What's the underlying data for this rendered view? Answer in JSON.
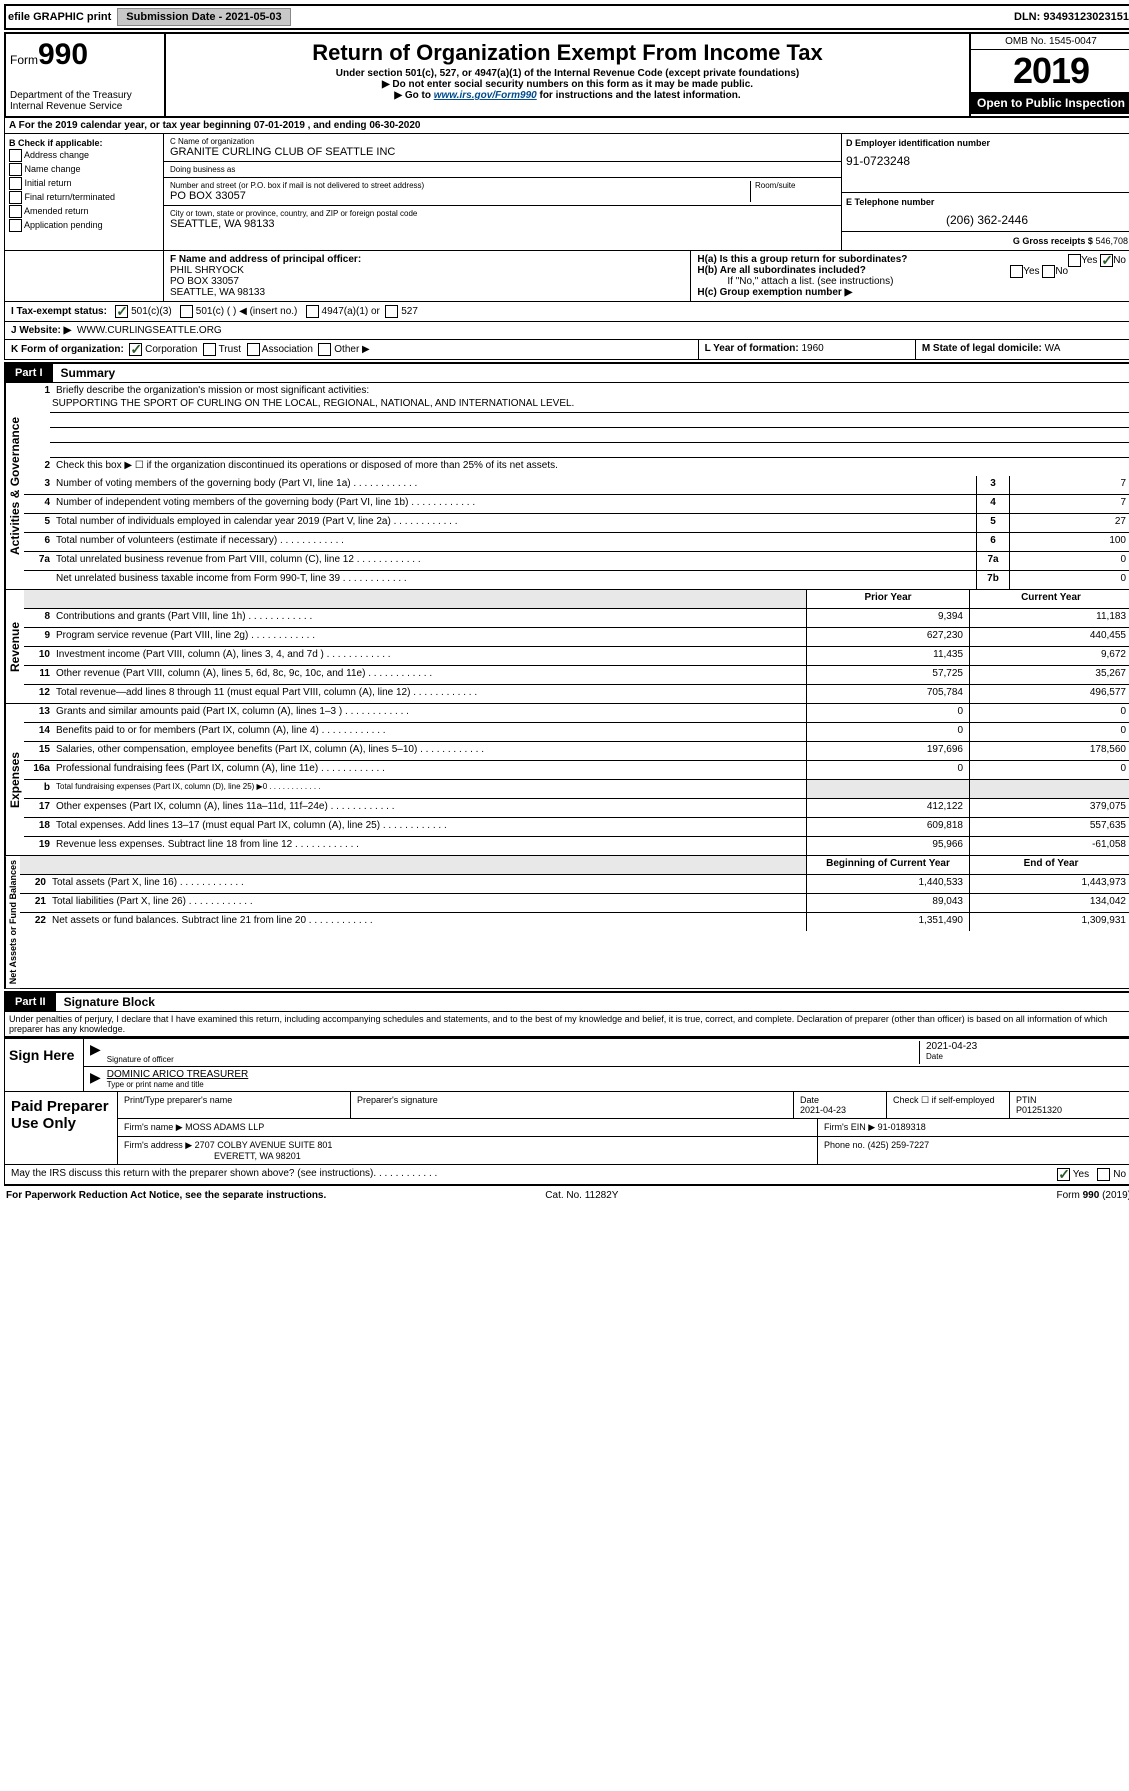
{
  "topbar": {
    "efile": "efile GRAPHIC print",
    "submission": "Submission Date - 2021-05-03",
    "dln": "DLN: 93493123023151"
  },
  "header": {
    "form_prefix": "Form",
    "form_number": "990",
    "dept": "Department of the Treasury Internal Revenue Service",
    "title": "Return of Organization Exempt From Income Tax",
    "subtitle": "Under section 501(c), 527, or 4947(a)(1) of the Internal Revenue Code (except private foundations)",
    "note1": "▶ Do not enter social security numbers on this form as it may be made public.",
    "note2_pre": "▶ Go to ",
    "note2_link": "www.irs.gov/Form990",
    "note2_post": " for instructions and the latest information.",
    "omb": "OMB No. 1545-0047",
    "year": "2019",
    "open": "Open to Public Inspection"
  },
  "rowA": "A  For the 2019 calendar year, or tax year beginning 07-01-2019     , and ending 06-30-2020",
  "B": {
    "label": "B Check if applicable:",
    "opts": [
      "Address change",
      "Name change",
      "Initial return",
      "Final return/terminated",
      "Amended return",
      "Application pending"
    ]
  },
  "C": {
    "name_lbl": "C Name of organization",
    "name": "GRANITE CURLING CLUB OF SEATTLE INC",
    "dba_lbl": "Doing business as",
    "dba": "",
    "addr_lbl": "Number and street (or P.O. box if mail is not delivered to street address)",
    "room_lbl": "Room/suite",
    "addr": "PO BOX 33057",
    "city_lbl": "City or town, state or province, country, and ZIP or foreign postal code",
    "city": "SEATTLE, WA  98133"
  },
  "D": {
    "lbl": "D Employer identification number",
    "val": "91-0723248"
  },
  "E": {
    "lbl": "E Telephone number",
    "val": "(206) 362-2446"
  },
  "G": {
    "lbl": "G Gross receipts $",
    "val": "546,708"
  },
  "F": {
    "lbl": "F  Name and address of principal officer:",
    "name": "PHIL SHRYOCK",
    "addr1": "PO BOX 33057",
    "addr2": "SEATTLE, WA  98133"
  },
  "H": {
    "a": "H(a)  Is this a group return for subordinates?",
    "b": "H(b)  Are all subordinates included?",
    "b_note": "If \"No,\" attach a list. (see instructions)",
    "c": "H(c)  Group exemption number ▶"
  },
  "I": {
    "lbl": "I  Tax-exempt status:",
    "o1": "501(c)(3)",
    "o2": "501(c) (   ) ◀ (insert no.)",
    "o3": "4947(a)(1) or",
    "o4": "527"
  },
  "J": {
    "lbl": "J   Website: ▶",
    "val": "WWW.CURLINGSEATTLE.ORG"
  },
  "K": {
    "lbl": "K Form of organization:",
    "opts": [
      "Corporation",
      "Trust",
      "Association",
      "Other ▶"
    ]
  },
  "L": {
    "lbl": "L Year of formation:",
    "val": "1960"
  },
  "M": {
    "lbl": "M State of legal domicile:",
    "val": "WA"
  },
  "partI": {
    "badge": "Part I",
    "title": "Summary"
  },
  "summary": {
    "q1": "Briefly describe the organization's mission or most significant activities:",
    "mission": "SUPPORTING THE SPORT OF CURLING ON THE LOCAL, REGIONAL, NATIONAL, AND INTERNATIONAL LEVEL.",
    "q2": "Check this box ▶ ☐  if the organization discontinued its operations or disposed of more than 25% of its net assets.",
    "lines_single": [
      {
        "n": "3",
        "t": "Number of voting members of the governing body (Part VI, line 1a)",
        "box": "3",
        "v": "7"
      },
      {
        "n": "4",
        "t": "Number of independent voting members of the governing body (Part VI, line 1b)",
        "box": "4",
        "v": "7"
      },
      {
        "n": "5",
        "t": "Total number of individuals employed in calendar year 2019 (Part V, line 2a)",
        "box": "5",
        "v": "27"
      },
      {
        "n": "6",
        "t": "Total number of volunteers (estimate if necessary)",
        "box": "6",
        "v": "100"
      },
      {
        "n": "7a",
        "t": "Total unrelated business revenue from Part VIII, column (C), line 12",
        "box": "7a",
        "v": "0"
      },
      {
        "n": "",
        "t": "Net unrelated business taxable income from Form 990-T, line 39",
        "box": "7b",
        "v": "0"
      }
    ],
    "col_hdr_prior": "Prior Year",
    "col_hdr_current": "Current Year",
    "revenue": [
      {
        "n": "8",
        "t": "Contributions and grants (Part VIII, line 1h)",
        "p": "9,394",
        "c": "11,183"
      },
      {
        "n": "9",
        "t": "Program service revenue (Part VIII, line 2g)",
        "p": "627,230",
        "c": "440,455"
      },
      {
        "n": "10",
        "t": "Investment income (Part VIII, column (A), lines 3, 4, and 7d )",
        "p": "11,435",
        "c": "9,672"
      },
      {
        "n": "11",
        "t": "Other revenue (Part VIII, column (A), lines 5, 6d, 8c, 9c, 10c, and 11e)",
        "p": "57,725",
        "c": "35,267"
      },
      {
        "n": "12",
        "t": "Total revenue—add lines 8 through 11 (must equal Part VIII, column (A), line 12)",
        "p": "705,784",
        "c": "496,577"
      }
    ],
    "expenses": [
      {
        "n": "13",
        "t": "Grants and similar amounts paid (Part IX, column (A), lines 1–3 )",
        "p": "0",
        "c": "0"
      },
      {
        "n": "14",
        "t": "Benefits paid to or for members (Part IX, column (A), line 4)",
        "p": "0",
        "c": "0"
      },
      {
        "n": "15",
        "t": "Salaries, other compensation, employee benefits (Part IX, column (A), lines 5–10)",
        "p": "197,696",
        "c": "178,560"
      },
      {
        "n": "16a",
        "t": "Professional fundraising fees (Part IX, column (A), line 11e)",
        "p": "0",
        "c": "0"
      },
      {
        "n": "b",
        "t": "Total fundraising expenses (Part IX, column (D), line 25) ▶0",
        "p": "",
        "c": "",
        "shade": true,
        "small": true
      },
      {
        "n": "17",
        "t": "Other expenses (Part IX, column (A), lines 11a–11d, 11f–24e)",
        "p": "412,122",
        "c": "379,075"
      },
      {
        "n": "18",
        "t": "Total expenses. Add lines 13–17 (must equal Part IX, column (A), line 25)",
        "p": "609,818",
        "c": "557,635"
      },
      {
        "n": "19",
        "t": "Revenue less expenses. Subtract line 18 from line 12",
        "p": "95,966",
        "c": "-61,058"
      }
    ],
    "col_hdr_begin": "Beginning of Current Year",
    "col_hdr_end": "End of Year",
    "netassets": [
      {
        "n": "20",
        "t": "Total assets (Part X, line 16)",
        "p": "1,440,533",
        "c": "1,443,973"
      },
      {
        "n": "21",
        "t": "Total liabilities (Part X, line 26)",
        "p": "89,043",
        "c": "134,042"
      },
      {
        "n": "22",
        "t": "Net assets or fund balances. Subtract line 21 from line 20",
        "p": "1,351,490",
        "c": "1,309,931"
      }
    ],
    "vlabels": {
      "gov": "Activities & Governance",
      "rev": "Revenue",
      "exp": "Expenses",
      "net": "Net Assets or Fund Balances"
    }
  },
  "partII": {
    "badge": "Part II",
    "title": "Signature Block"
  },
  "perjury": "Under penalties of perjury, I declare that I have examined this return, including accompanying schedules and statements, and to the best of my knowledge and belief, it is true, correct, and complete. Declaration of preparer (other than officer) is based on all information of which preparer has any knowledge.",
  "sign": {
    "here": "Sign Here",
    "sig_lbl": "Signature of officer",
    "date": "2021-04-23",
    "date_lbl": "Date",
    "name": "DOMINIC ARICO TREASURER",
    "name_lbl": "Type or print name and title"
  },
  "paid": {
    "title": "Paid Preparer Use Only",
    "prep_name_lbl": "Print/Type preparer's name",
    "prep_sig_lbl": "Preparer's signature",
    "prep_date_lbl": "Date",
    "prep_date": "2021-04-23",
    "self_emp": "Check ☐ if self-employed",
    "ptin_lbl": "PTIN",
    "ptin": "P01251320",
    "firm_lbl": "Firm's name      ▶",
    "firm": "MOSS ADAMS LLP",
    "firm_ein_lbl": "Firm's EIN ▶",
    "firm_ein": "91-0189318",
    "firm_addr_lbl": "Firm's address ▶",
    "firm_addr1": "2707 COLBY AVENUE SUITE 801",
    "firm_addr2": "EVERETT, WA  98201",
    "phone_lbl": "Phone no.",
    "phone": "(425) 259-7227"
  },
  "discuss": "May the IRS discuss this return with the preparer shown above? (see instructions)",
  "footer": {
    "left": "For Paperwork Reduction Act Notice, see the separate instructions.",
    "mid": "Cat. No. 11282Y",
    "right": "Form 990 (2019)"
  }
}
